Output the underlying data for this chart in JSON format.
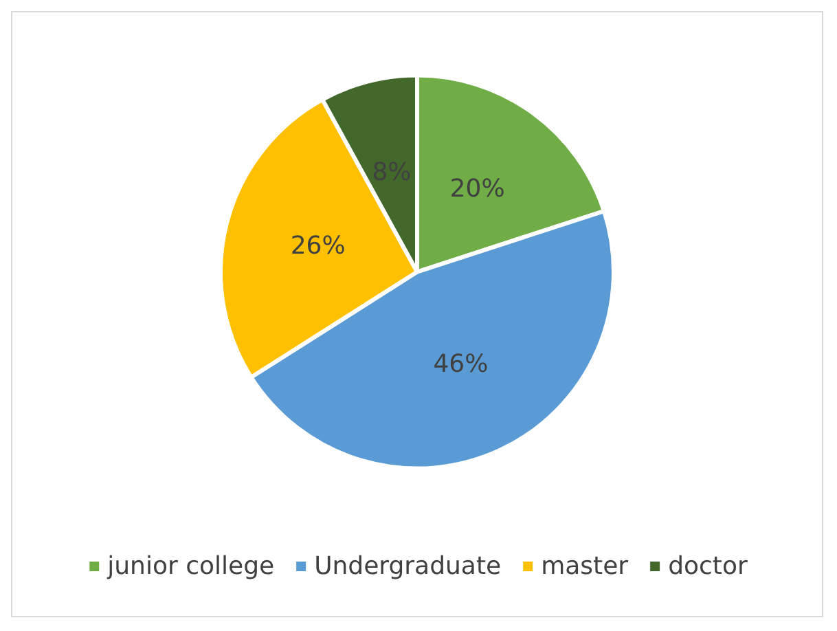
{
  "chart_data": {
    "type": "pie",
    "categories": [
      "junior college",
      "Undergraduate",
      "master",
      "doctor"
    ],
    "values": [
      20,
      46,
      26,
      8
    ],
    "value_labels": [
      "20%",
      "46%",
      "26%",
      "8%"
    ],
    "colors": [
      "#70ad47",
      "#5b9bd5",
      "#ffc000",
      "#43682b"
    ],
    "legend": "bottom"
  }
}
